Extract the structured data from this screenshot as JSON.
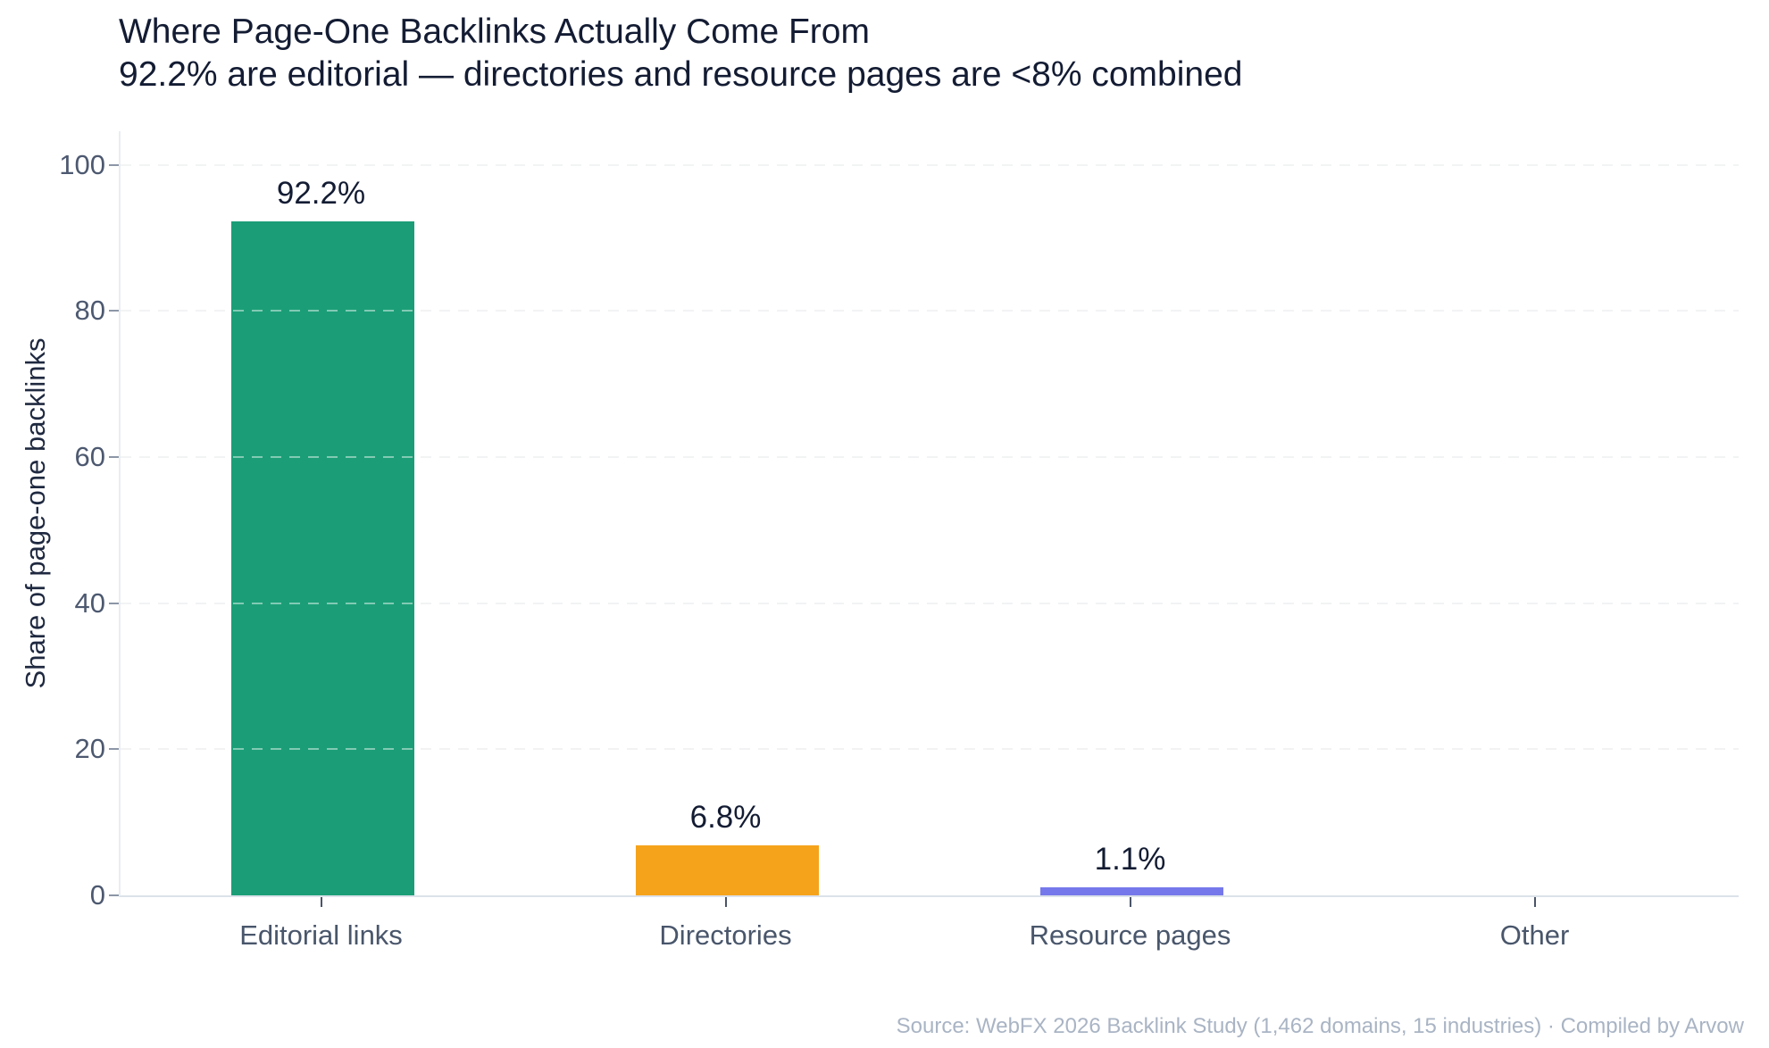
{
  "chart_data": {
    "type": "bar",
    "title": "Where Page-One Backlinks Actually Come From",
    "subtitle": "92.2% are editorial — directories and resource pages are <8% combined",
    "categories": [
      "Editorial links",
      "Directories",
      "Resource pages",
      "Other"
    ],
    "values": [
      92.2,
      6.8,
      1.1,
      0
    ],
    "value_labels": [
      "92.2%",
      "6.8%",
      "1.1%",
      ""
    ],
    "bar_colors": [
      "#1B9E77",
      "#F5A31B",
      "#7578EA",
      null
    ],
    "xlabel": "",
    "ylabel": "Share of page-one backlinks",
    "yticks": [
      0,
      20,
      40,
      60,
      80,
      100
    ],
    "ylim": [
      0,
      104.6
    ],
    "grid": "horizontal dashed, drawn over bars",
    "legend": "none"
  },
  "source": "Source: WebFX 2026 Backlink Study (1,462 domains, 15 industries) · Compiled by Arvow",
  "colors": {
    "background": "#FFFFFF",
    "title_text": "#131C33",
    "tick_text": "#4D5970",
    "category_text": "#49566B",
    "axis_line": "#DCE2EA",
    "gridline": "#E7E9EC",
    "source_text": "#A9B4C4",
    "bar_editorial": "#1B9E77",
    "bar_directories": "#F5A31B",
    "bar_resource_pages": "#7578EA"
  }
}
